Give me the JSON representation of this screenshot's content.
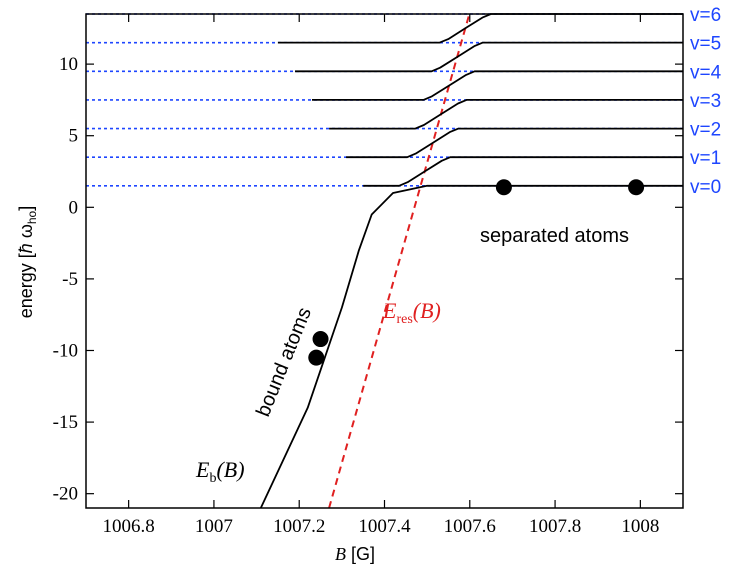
{
  "chart_data": {
    "type": "line",
    "title": "",
    "xlabel": "B [G]",
    "ylabel": "energy [ħ ω_ho]",
    "xlim": [
      1006.7,
      1008.1
    ],
    "ylim": [
      -21,
      13.5
    ],
    "x_ticks": [
      1006.8,
      1007.0,
      1007.2,
      1007.4,
      1007.6,
      1007.8,
      1008.0
    ],
    "x_tick_labels": [
      "1006.8",
      "1007",
      "1007.2",
      "1007.4",
      "1007.6",
      "1007.8",
      "1008"
    ],
    "y_ticks": [
      -20,
      -15,
      -10,
      -5,
      0,
      5,
      10
    ],
    "y_tick_labels": [
      "-20",
      "-15",
      "-10",
      "-5",
      "0",
      "5",
      "10"
    ],
    "grid": false,
    "series": [
      {
        "kind": "levels",
        "style": "dotted",
        "color": "#1e46ff",
        "labels": [
          "v=0",
          "v=1",
          "v=2",
          "v=3",
          "v=4",
          "v=5",
          "v=6"
        ],
        "values": [
          1.5,
          3.5,
          5.5,
          7.5,
          9.5,
          11.5,
          13.5
        ]
      },
      {
        "name": "E_b(B)",
        "color": "#000000",
        "points": [
          [
            1007.11,
            -21
          ],
          [
            1007.22,
            -14
          ],
          [
            1007.3,
            -7
          ],
          [
            1007.34,
            -3
          ],
          [
            1007.37,
            -0.5
          ],
          [
            1007.42,
            1.0
          ],
          [
            1007.5,
            1.5
          ],
          [
            1008.1,
            1.5
          ]
        ]
      },
      {
        "name": "E_res(B)",
        "color": "#e02020",
        "style": "dashed",
        "points": [
          [
            1007.27,
            -21
          ],
          [
            1007.6,
            13.6
          ]
        ]
      },
      {
        "kind": "avoided-crossings",
        "color": "#000000",
        "values": [
          3.5,
          5.5,
          7.5,
          9.5,
          11.5,
          13.5
        ]
      }
    ],
    "markers": [
      {
        "x": 1007.24,
        "y": -10.5
      },
      {
        "x": 1007.25,
        "y": -9.2
      },
      {
        "x": 1007.68,
        "y": 1.4
      },
      {
        "x": 1007.99,
        "y": 1.4
      }
    ],
    "annotations": {
      "separated": "separated atoms",
      "bound": "bound atoms",
      "eb_main": "E",
      "eb_sub": "b",
      "eb_arg": "(B)",
      "eres_main": "E",
      "eres_sub": "res",
      "eres_arg": "(B)"
    },
    "axis_text": {
      "x_italic": "B",
      "x_unit": " [G]",
      "y_prefix": "energy [",
      "y_hbar": "ħ",
      "y_omega": " ω",
      "y_sub": "ho",
      "y_suffix": "]"
    }
  }
}
